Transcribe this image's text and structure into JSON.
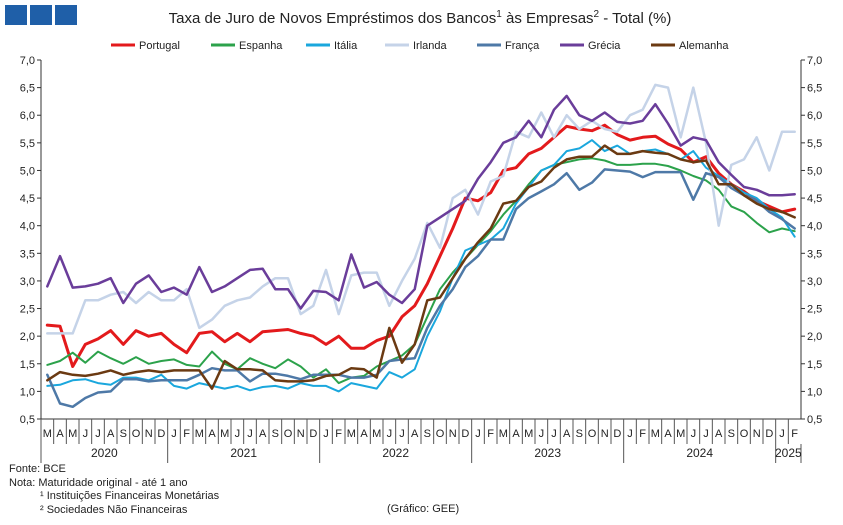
{
  "logo": {
    "color": "#1f5fa8"
  },
  "title": {
    "text": "Taxa de Juro de Novos Empréstimos dos Bancos",
    "sup1": "1",
    "mid": " às Empresas",
    "sup2": "2",
    "end": " - Total (%)"
  },
  "footer": {
    "fonte": "Fonte: BCE",
    "nota": "Nota: Maturidade original - até 1 ano",
    "note1": "¹ Instituições Financeiras Monetárias",
    "note2": "² Sociedades Não Financeiras",
    "credit": "(Gráfico: GEE)"
  },
  "chart_data": {
    "type": "line",
    "ylim": [
      0.5,
      7.0
    ],
    "yticks": [
      "0,5",
      "1,0",
      "1,5",
      "2,0",
      "2,5",
      "3,0",
      "3,5",
      "4,0",
      "4,5",
      "5,0",
      "5,5",
      "6,0",
      "6,5",
      "7,0"
    ],
    "grid": false,
    "legend_position": "top",
    "x": [
      "M",
      "A",
      "M",
      "J",
      "J",
      "A",
      "S",
      "O",
      "N",
      "D",
      "J",
      "F",
      "M",
      "A",
      "M",
      "J",
      "J",
      "A",
      "S",
      "O",
      "N",
      "D",
      "J",
      "F",
      "M",
      "A",
      "M",
      "J",
      "J",
      "A",
      "S",
      "O",
      "N",
      "D",
      "J",
      "F",
      "M",
      "A",
      "M",
      "J",
      "J",
      "A",
      "S",
      "O",
      "N",
      "D",
      "J",
      "F",
      "M",
      "A",
      "M",
      "J",
      "J",
      "A",
      "S",
      "O",
      "N",
      "D",
      "J",
      "F"
    ],
    "years": [
      {
        "label": "2020",
        "start": 0,
        "end": 9
      },
      {
        "label": "2021",
        "start": 10,
        "end": 21
      },
      {
        "label": "2022",
        "start": 22,
        "end": 33
      },
      {
        "label": "2023",
        "start": 34,
        "end": 45
      },
      {
        "label": "2024",
        "start": 46,
        "end": 57
      },
      {
        "label": "2025",
        "start": 58,
        "end": 59
      }
    ],
    "series": [
      {
        "name": "Portugal",
        "color": "#e31a1c",
        "width": 3,
        "values": [
          2.2,
          2.18,
          1.45,
          1.85,
          1.95,
          2.1,
          1.85,
          2.1,
          2.0,
          2.05,
          1.85,
          1.7,
          2.05,
          2.08,
          1.9,
          2.05,
          1.9,
          2.08,
          2.1,
          2.12,
          2.05,
          2.0,
          1.85,
          2.0,
          1.78,
          1.78,
          1.92,
          2.0,
          2.35,
          2.55,
          2.95,
          3.45,
          3.95,
          4.5,
          4.45,
          4.6,
          5.0,
          5.05,
          5.3,
          5.4,
          5.6,
          5.8,
          5.75,
          5.72,
          5.82,
          5.65,
          5.55,
          5.6,
          5.62,
          5.48,
          5.38,
          5.15,
          5.25,
          4.95,
          4.75,
          4.62,
          4.45,
          4.35,
          4.25,
          4.3
        ]
      },
      {
        "name": "Espanha",
        "color": "#2ca24b",
        "width": 2,
        "values": [
          1.48,
          1.55,
          1.7,
          1.52,
          1.72,
          1.6,
          1.5,
          1.62,
          1.5,
          1.55,
          1.58,
          1.48,
          1.45,
          1.72,
          1.5,
          1.4,
          1.6,
          1.5,
          1.42,
          1.58,
          1.45,
          1.25,
          1.4,
          1.15,
          1.25,
          1.28,
          1.45,
          1.55,
          1.65,
          1.85,
          2.35,
          2.85,
          3.15,
          3.4,
          3.65,
          3.9,
          4.2,
          4.45,
          4.75,
          5.0,
          5.1,
          5.15,
          5.2,
          5.22,
          5.18,
          5.1,
          5.1,
          5.12,
          5.12,
          5.08,
          5.0,
          4.9,
          4.82,
          4.65,
          4.35,
          4.25,
          4.05,
          3.88,
          3.95,
          3.9
        ]
      },
      {
        "name": "Itália",
        "color": "#1aa7dd",
        "width": 2,
        "values": [
          1.1,
          1.12,
          1.2,
          1.22,
          1.15,
          1.12,
          1.25,
          1.25,
          1.2,
          1.3,
          1.1,
          1.05,
          1.15,
          1.1,
          1.05,
          1.1,
          1.02,
          1.08,
          1.1,
          1.05,
          1.15,
          1.1,
          1.1,
          1.0,
          1.15,
          1.1,
          1.05,
          1.35,
          1.25,
          1.4,
          2.0,
          2.45,
          3.05,
          3.55,
          3.65,
          3.75,
          3.95,
          4.4,
          4.7,
          5.0,
          5.1,
          5.35,
          5.4,
          5.55,
          5.35,
          5.45,
          5.3,
          5.35,
          5.38,
          5.3,
          5.2,
          5.35,
          5.05,
          4.9,
          4.75,
          4.6,
          4.5,
          4.3,
          4.15,
          3.8
        ]
      },
      {
        "name": "Irlanda",
        "color": "#c5d3e8",
        "width": 2.5,
        "values": [
          2.05,
          2.05,
          2.05,
          2.65,
          2.65,
          2.75,
          2.8,
          2.6,
          2.8,
          2.65,
          2.65,
          2.85,
          2.15,
          2.3,
          2.55,
          2.65,
          2.7,
          2.9,
          3.05,
          3.05,
          2.4,
          2.55,
          3.2,
          2.4,
          3.1,
          3.15,
          3.15,
          2.55,
          3.0,
          3.4,
          4.05,
          3.6,
          4.5,
          4.65,
          4.2,
          4.8,
          4.9,
          5.7,
          5.6,
          6.05,
          5.6,
          6.0,
          5.75,
          5.9,
          5.75,
          5.7,
          6.0,
          6.1,
          6.55,
          6.5,
          5.6,
          6.5,
          5.5,
          4.0,
          5.1,
          5.2,
          5.6,
          5.0,
          5.7,
          5.7
        ]
      },
      {
        "name": "França",
        "color": "#4e79a7",
        "width": 2.5,
        "values": [
          1.3,
          0.78,
          0.72,
          0.88,
          0.98,
          1.0,
          1.22,
          1.22,
          1.18,
          1.2,
          1.2,
          1.2,
          1.3,
          1.42,
          1.38,
          1.38,
          1.18,
          1.32,
          1.32,
          1.28,
          1.22,
          1.3,
          1.3,
          1.3,
          1.25,
          1.25,
          1.3,
          1.55,
          1.58,
          1.6,
          2.15,
          2.55,
          2.85,
          3.25,
          3.45,
          3.75,
          3.75,
          4.3,
          4.5,
          4.62,
          4.75,
          4.95,
          4.65,
          4.78,
          5.02,
          5.0,
          4.98,
          4.88,
          4.97,
          4.97,
          4.97,
          4.47,
          4.95,
          4.88,
          4.68,
          4.55,
          4.45,
          4.25,
          4.12,
          3.95
        ]
      },
      {
        "name": "Grécia",
        "color": "#6a3d9a",
        "width": 2.5,
        "values": [
          2.9,
          3.45,
          2.88,
          2.9,
          2.95,
          3.05,
          2.6,
          2.95,
          3.1,
          2.8,
          2.88,
          2.75,
          3.25,
          2.8,
          2.9,
          3.05,
          3.2,
          3.22,
          2.85,
          2.85,
          2.5,
          2.82,
          2.8,
          2.65,
          3.48,
          2.88,
          2.98,
          2.75,
          2.6,
          2.85,
          4.0,
          4.15,
          4.3,
          4.45,
          4.85,
          5.15,
          5.5,
          5.6,
          5.9,
          5.6,
          6.1,
          6.35,
          6.0,
          5.9,
          6.05,
          5.88,
          5.85,
          5.9,
          6.2,
          5.85,
          5.45,
          5.6,
          5.55,
          5.15,
          4.92,
          4.7,
          4.65,
          4.55,
          4.55,
          4.57
        ]
      },
      {
        "name": "Alemanha",
        "color": "#6b3a12",
        "width": 2.5,
        "values": [
          1.2,
          1.35,
          1.3,
          1.28,
          1.32,
          1.38,
          1.3,
          1.35,
          1.38,
          1.35,
          1.38,
          1.38,
          1.38,
          1.05,
          1.55,
          1.4,
          1.4,
          1.38,
          1.2,
          1.18,
          1.18,
          1.2,
          1.28,
          1.3,
          1.42,
          1.4,
          1.25,
          2.15,
          1.52,
          1.85,
          2.65,
          2.7,
          3.05,
          3.4,
          3.7,
          3.95,
          4.4,
          4.45,
          4.7,
          4.8,
          5.05,
          5.2,
          5.25,
          5.25,
          5.45,
          5.3,
          5.3,
          5.35,
          5.32,
          5.3,
          5.2,
          5.15,
          5.18,
          4.75,
          4.75,
          4.55,
          4.4,
          4.3,
          4.25,
          4.15
        ]
      }
    ]
  }
}
